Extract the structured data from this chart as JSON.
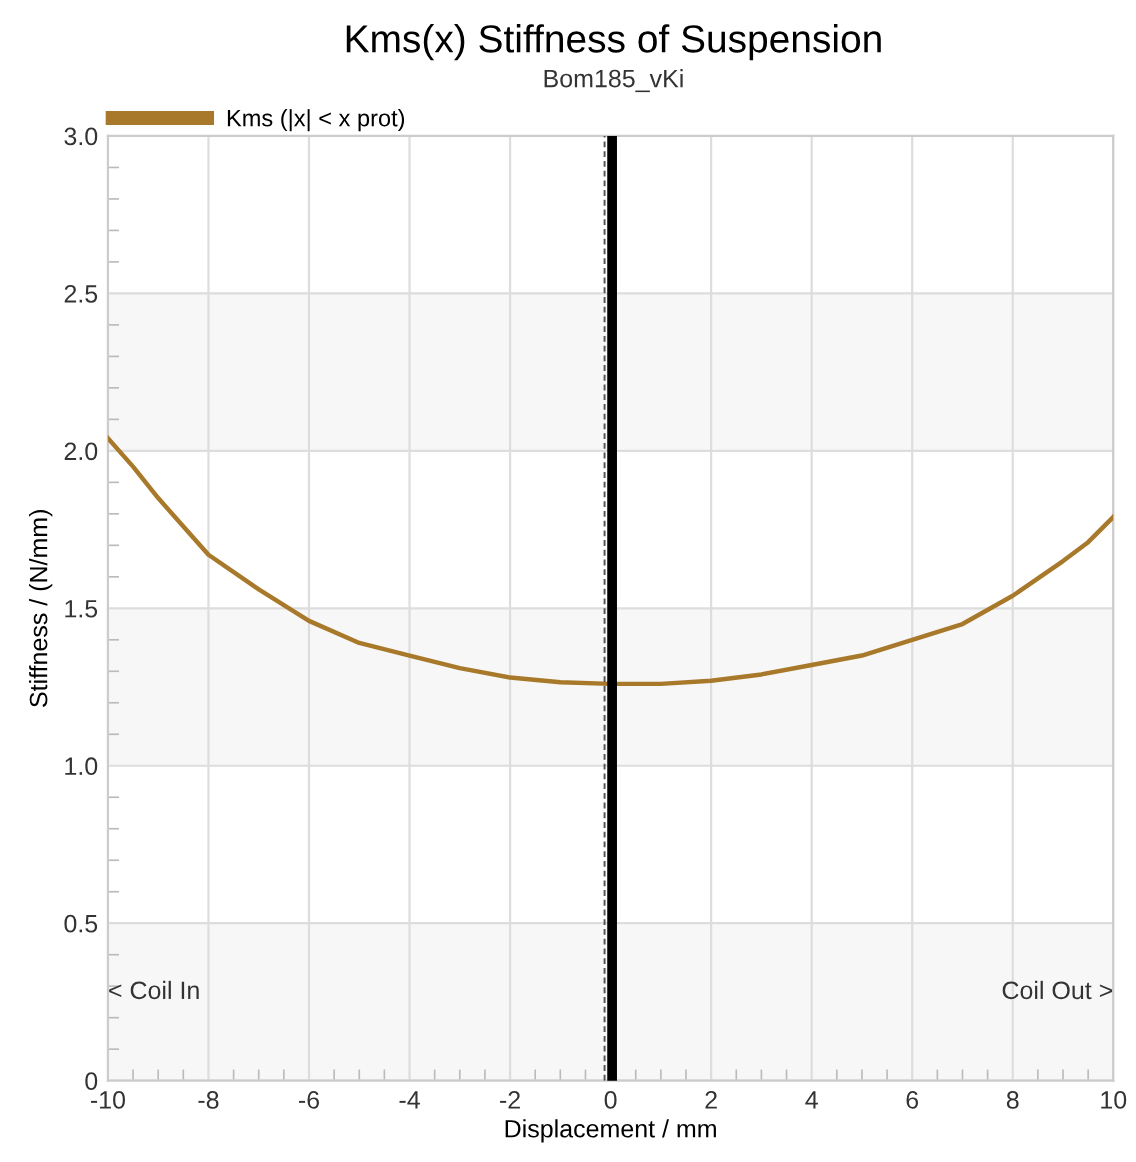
{
  "chart_data": {
    "type": "line",
    "title": "Kms(x) Stiffness of Suspension",
    "subtitle": "Bom185_vKi",
    "xlabel": "Displacement / mm",
    "ylabel": "Stiffness / (N/mm)",
    "x": [
      -10,
      -9.5,
      -9,
      -8,
      -7,
      -6,
      -5,
      -4,
      -3,
      -2,
      -1,
      0,
      1,
      2,
      3,
      4,
      5,
      6,
      7,
      8,
      9,
      9.5,
      10
    ],
    "series": [
      {
        "name": "Kms (|x| < x prot)",
        "color": "#a8792a",
        "values": [
          2.04,
          1.95,
          1.85,
          1.67,
          1.56,
          1.46,
          1.39,
          1.35,
          1.31,
          1.28,
          1.265,
          1.26,
          1.26,
          1.27,
          1.29,
          1.32,
          1.35,
          1.4,
          1.45,
          1.54,
          1.65,
          1.71,
          1.79
        ]
      }
    ],
    "xlim": [
      -10,
      10
    ],
    "ylim": [
      0,
      3
    ],
    "xticks": [
      -10,
      -8,
      -6,
      -4,
      -2,
      0,
      2,
      4,
      6,
      8,
      10
    ],
    "yticks": [
      0,
      {
        "value": 0.5,
        "label": "0.5"
      },
      {
        "value": 1,
        "label": "1.0"
      },
      {
        "value": 1.5,
        "label": "1.5"
      },
      {
        "value": 2,
        "label": "2.0"
      },
      {
        "value": 2.5,
        "label": "2.5"
      },
      {
        "value": 3,
        "label": "3.0"
      }
    ],
    "ref_lines": [
      {
        "axis": "x",
        "value": 0.03,
        "color": "#000000",
        "line_style": "solid"
      },
      {
        "axis": "x",
        "value": -0.12,
        "color": "#555555",
        "line_style": "dashed"
      }
    ],
    "bands": [
      {
        "axis": "y",
        "from": 0,
        "to": 0.5,
        "color": "#f7f7f7"
      },
      {
        "axis": "y",
        "from": 1,
        "to": 1.5,
        "color": "#f7f7f7"
      },
      {
        "axis": "y",
        "from": 2,
        "to": 2.5,
        "color": "#f7f7f7"
      }
    ],
    "annotations": [
      {
        "text": "< Coil In",
        "x": -10,
        "y": 0.28
      },
      {
        "text": "Coil Out >",
        "x": 10,
        "y": 0.28
      }
    ],
    "grid": true,
    "legend": "top left",
    "marker": "none",
    "line_style": "solid"
  }
}
